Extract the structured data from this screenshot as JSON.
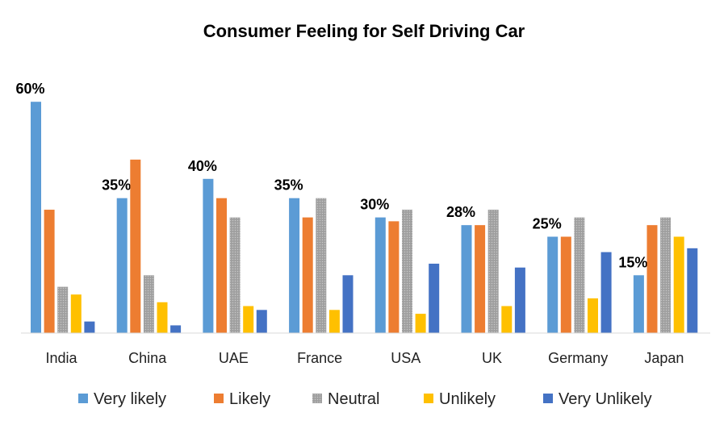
{
  "chart_data": {
    "type": "bar",
    "title": "Consumer Feeling for Self Driving Car",
    "categories": [
      "India",
      "China",
      "UAE",
      "France",
      "USA",
      "UK",
      "Germany",
      "Japan"
    ],
    "series": [
      {
        "name": "Very likely",
        "color": "#5B9BD5",
        "values": [
          60,
          35,
          40,
          35,
          30,
          28,
          25,
          15
        ],
        "labels": [
          "60%",
          "35%",
          "40%",
          "35%",
          "30%",
          "28%",
          "25%",
          "15%"
        ]
      },
      {
        "name": "Likely",
        "color": "#ED7D31",
        "values": [
          32,
          45,
          35,
          30,
          29,
          28,
          25,
          28
        ]
      },
      {
        "name": "Neutral",
        "color": "#A5A5A5",
        "values": [
          12,
          15,
          30,
          35,
          32,
          32,
          30,
          30
        ]
      },
      {
        "name": "Unlikely",
        "color": "#FFC000",
        "values": [
          10,
          8,
          7,
          6,
          5,
          7,
          9,
          25
        ]
      },
      {
        "name": "Very Unlikely",
        "color": "#4472C4",
        "values": [
          3,
          2,
          6,
          15,
          18,
          17,
          21,
          22
        ]
      }
    ],
    "unit": "%",
    "grid": false,
    "legend_position": "bottom"
  }
}
